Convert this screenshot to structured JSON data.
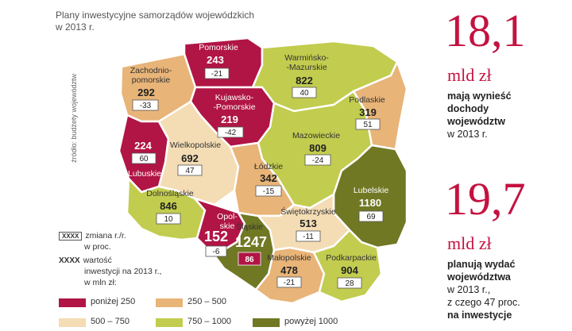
{
  "title": "Plany inwestycyjne samorządów wojewódzkich w 2013 r.",
  "source": "źródło: budżety województw",
  "colors": {
    "below_250": "#b01545",
    "250_500": "#e8b478",
    "500_750": "#f4dcb4",
    "750_1000": "#c2cc4e",
    "above_1000": "#707824"
  },
  "regions": [
    {
      "name": "Pomorskie",
      "value": "243",
      "change": "-21",
      "category": "below_250"
    },
    {
      "name": "Warmińsko-Mazurskie",
      "value": "822",
      "change": "40",
      "category": "750_1000"
    },
    {
      "name": "Zachodnio-pomorskie",
      "value": "292",
      "change": "-33",
      "category": "250_500"
    },
    {
      "name": "Kujawsko-Pomorskie",
      "value": "219",
      "change": "-42",
      "category": "below_250"
    },
    {
      "name": "Podlaskie",
      "value": "319",
      "change": "51",
      "category": "250_500"
    },
    {
      "name": "Lubuskie",
      "value": "224",
      "change": "60",
      "category": "below_250"
    },
    {
      "name": "Wielkopolskie",
      "value": "692",
      "change": "47",
      "category": "500_750"
    },
    {
      "name": "Mazowieckie",
      "value": "809",
      "change": "-24",
      "category": "750_1000"
    },
    {
      "name": "Łódzkie",
      "value": "342",
      "change": "-15",
      "category": "250_500"
    },
    {
      "name": "Lubelskie",
      "value": "1180",
      "change": "69",
      "category": "above_1000"
    },
    {
      "name": "Dolnośląskie",
      "value": "846",
      "change": "10",
      "category": "750_1000"
    },
    {
      "name": "Opolskie",
      "value": "152",
      "change": "-6",
      "category": "below_250"
    },
    {
      "name": "Śląskie",
      "value": "1247",
      "change": "86",
      "category": "above_1000"
    },
    {
      "name": "Świętokrzyskie",
      "value": "513",
      "change": "-11",
      "category": "500_750"
    },
    {
      "name": "Małopolskie",
      "value": "478",
      "change": "-21",
      "category": "250_500"
    },
    {
      "name": "Podkarpackie",
      "value": "904",
      "change": "28",
      "category": "750_1000"
    }
  ],
  "key": {
    "change_box": "XXXX",
    "change_label_1": "zmiana r./r.",
    "change_label_2": "w proc.",
    "value_mark": "XXXX",
    "value_label_1": "wartość",
    "value_label_2": "inwestycji na 2013 r.,",
    "value_label_3": "w mln zł:"
  },
  "legend": [
    {
      "label": "poniżej 250",
      "color": "#b01545"
    },
    {
      "label": "250 – 500",
      "color": "#e8b478"
    },
    {
      "label": "500 – 750",
      "color": "#f4dcb4"
    },
    {
      "label": "750 – 1000",
      "color": "#c2cc4e"
    },
    {
      "label": "powyżej 1000",
      "color": "#707824"
    }
  ],
  "stats": {
    "income_value": "18,1",
    "income_unit": "mld zł",
    "income_desc": [
      "mają wynieść",
      "dochody",
      "województw",
      "w 2013 r."
    ],
    "spend_value": "19,7",
    "spend_unit": "mld zł",
    "spend_desc": [
      "planują wydać",
      "województwa",
      "w 2013 r.,",
      "z czego 47 proc.",
      "na inwestycje"
    ]
  }
}
